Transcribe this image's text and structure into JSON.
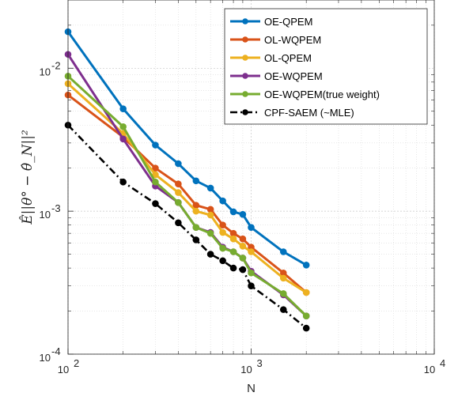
{
  "chart_data": {
    "type": "line",
    "xscale": "log",
    "yscale": "log",
    "xlim": [
      100,
      10000
    ],
    "ylim": [
      0.0001,
      0.03
    ],
    "xlabel": "N",
    "ylabel": "Ê||θ° − θ̂_N||²",
    "x_ticks": [
      {
        "value": 100,
        "base": "10",
        "exp": "2"
      },
      {
        "value": 1000,
        "base": "10",
        "exp": "3"
      },
      {
        "value": 10000,
        "base": "10",
        "exp": "4"
      }
    ],
    "y_ticks": [
      {
        "value": 0.0001,
        "base": "10",
        "exp": "-4"
      },
      {
        "value": 0.001,
        "base": "10",
        "exp": "-3"
      },
      {
        "value": 0.01,
        "base": "10",
        "exp": "-2"
      }
    ],
    "grid": true,
    "legend_position": "top-right",
    "x": [
      100,
      200,
      300,
      400,
      500,
      600,
      700,
      800,
      900,
      1000,
      1500,
      2000
    ],
    "series": [
      {
        "name": "OE-QPEM",
        "color": "#0072BD",
        "style": "solid",
        "values": [
          0.018,
          0.0052,
          0.0029,
          0.00215,
          0.00163,
          0.00145,
          0.00118,
          0.00099,
          0.00095,
          0.00077,
          0.00052,
          0.00042
        ]
      },
      {
        "name": "OL-WQPEM",
        "color": "#D95319",
        "style": "solid",
        "values": [
          0.0065,
          0.0033,
          0.002,
          0.00155,
          0.0011,
          0.00103,
          0.0008,
          0.0007,
          0.00064,
          0.00056,
          0.00037,
          0.00027
        ]
      },
      {
        "name": "OL-QPEM",
        "color": "#EDB120",
        "style": "solid",
        "values": [
          0.0078,
          0.0035,
          0.0018,
          0.00135,
          0.001,
          0.00094,
          0.00071,
          0.00064,
          0.00057,
          0.00052,
          0.00034,
          0.00027
        ]
      },
      {
        "name": "OE-WQPEM",
        "color": "#7E2F8E",
        "style": "solid",
        "values": [
          0.0125,
          0.0032,
          0.0015,
          0.00115,
          0.00077,
          0.00071,
          0.00056,
          0.00052,
          0.00047,
          0.00038,
          0.00026,
          0.000185
        ]
      },
      {
        "name": "OE-WQPEM(true weight)",
        "color": "#77AC30",
        "style": "solid",
        "values": [
          0.0088,
          0.0039,
          0.0016,
          0.00115,
          0.00077,
          0.0007,
          0.00055,
          0.00052,
          0.00047,
          0.00037,
          0.000265,
          0.000185
        ]
      },
      {
        "name": "CPF-SAEM (~MLE)",
        "color": "#000000",
        "style": "dashdot",
        "values": [
          0.004,
          0.0016,
          0.00113,
          0.00083,
          0.00063,
          0.0005,
          0.00045,
          0.0004,
          0.00039,
          0.0003,
          0.000205,
          0.000152
        ]
      }
    ]
  }
}
